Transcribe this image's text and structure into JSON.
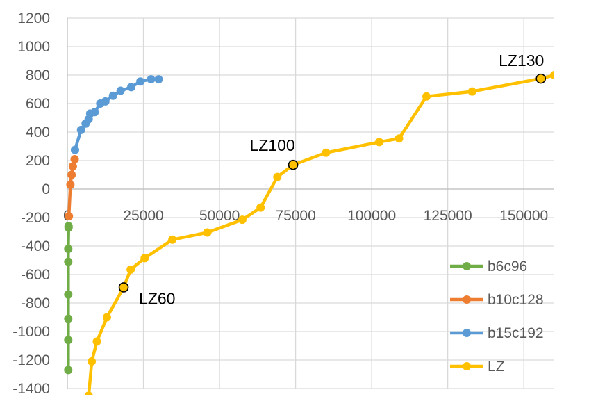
{
  "chart_data": {
    "type": "line",
    "title": "",
    "xlabel": "",
    "ylabel": "",
    "xlim": [
      0,
      160000
    ],
    "ylim": [
      -1400,
      1200
    ],
    "x_ticks": [
      0,
      25000,
      50000,
      75000,
      100000,
      125000,
      150000
    ],
    "x_tick_labels": [
      "0",
      "25000",
      "50000",
      "75000",
      "100000",
      "125000",
      "150000"
    ],
    "y_ticks": [
      1200,
      1000,
      800,
      600,
      400,
      200,
      0,
      -200,
      -400,
      -600,
      -800,
      -1000,
      -1200,
      -1400
    ],
    "y_tick_labels": [
      "1200",
      "1000",
      "800",
      "600",
      "400",
      "200",
      "0",
      "-200",
      "-400",
      "-600",
      "-800",
      "-1000",
      "-1200",
      "-1400"
    ],
    "grid": "vertical and horizontal major gridlines",
    "legend": "right",
    "series": [
      {
        "name": "b6c96",
        "color": "#70AD47",
        "points": [
          [
            300,
            -1270
          ],
          [
            300,
            -1060
          ],
          [
            300,
            -910
          ],
          [
            300,
            -740
          ],
          [
            300,
            -510
          ],
          [
            300,
            -420
          ],
          [
            400,
            -270
          ],
          [
            400,
            -260
          ]
        ]
      },
      {
        "name": "b10c128",
        "color": "#ED7D31",
        "points": [
          [
            500,
            -190
          ],
          [
            1000,
            30
          ],
          [
            1400,
            100
          ],
          [
            1800,
            160
          ],
          [
            2400,
            210
          ]
        ]
      },
      {
        "name": "b15c192",
        "color": "#5B9BD5",
        "points": [
          [
            2500,
            275
          ],
          [
            4500,
            415
          ],
          [
            6000,
            460
          ],
          [
            7000,
            490
          ],
          [
            7500,
            530
          ],
          [
            9000,
            540
          ],
          [
            10800,
            600
          ],
          [
            12500,
            615
          ],
          [
            15000,
            655
          ],
          [
            17500,
            690
          ],
          [
            21000,
            715
          ],
          [
            24000,
            755
          ],
          [
            27500,
            770
          ],
          [
            30000,
            770
          ]
        ]
      },
      {
        "name": "LZ",
        "color": "#FFC000",
        "points": [
          [
            7000,
            -1450
          ],
          [
            8000,
            -1210
          ],
          [
            9700,
            -1070
          ],
          [
            13000,
            -900
          ],
          [
            18500,
            -690
          ],
          [
            20800,
            -565
          ],
          [
            25400,
            -485
          ],
          [
            34500,
            -355
          ],
          [
            46000,
            -305
          ],
          [
            57500,
            -215
          ],
          [
            63500,
            -130
          ],
          [
            69000,
            85
          ],
          [
            74200,
            170
          ],
          [
            85000,
            255
          ],
          [
            102500,
            330
          ],
          [
            109000,
            355
          ],
          [
            118000,
            650
          ],
          [
            133000,
            685
          ],
          [
            155600,
            775
          ],
          [
            160000,
            800
          ]
        ]
      }
    ],
    "annotations": [
      {
        "text": "LZ60",
        "x": 18500,
        "y": -690
      },
      {
        "text": "LZ100",
        "x": 74200,
        "y": 170
      },
      {
        "text": "LZ130",
        "x": 155600,
        "y": 775
      }
    ]
  }
}
